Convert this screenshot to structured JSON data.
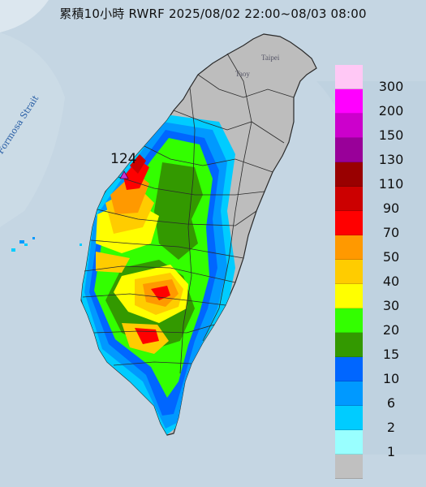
{
  "title": "累積10小時 RWRF 2025/08/02 22:00~08/03 08:00",
  "map_labels": {
    "strait": "Formosa Strait",
    "taipei": "Taipei",
    "taoyuan": "Taoy",
    "peak_value": "124"
  },
  "legend": {
    "levels": [
      {
        "label": "300",
        "color": "#ffc8f5"
      },
      {
        "label": "200",
        "color": "#ff00ff"
      },
      {
        "label": "150",
        "color": "#cc00cc"
      },
      {
        "label": "130",
        "color": "#990099"
      },
      {
        "label": "110",
        "color": "#990000"
      },
      {
        "label": "90",
        "color": "#cc0000"
      },
      {
        "label": "70",
        "color": "#ff0000"
      },
      {
        "label": "50",
        "color": "#ff9900"
      },
      {
        "label": "40",
        "color": "#ffcc00"
      },
      {
        "label": "30",
        "color": "#ffff00"
      },
      {
        "label": "20",
        "color": "#33ff00"
      },
      {
        "label": "15",
        "color": "#339900"
      },
      {
        "label": "10",
        "color": "#0066ff"
      },
      {
        "label": "6",
        "color": "#0099ff"
      },
      {
        "label": "2",
        "color": "#00ccff"
      },
      {
        "label": "1",
        "color": "#99ffff"
      },
      {
        "label": "",
        "color": "#c0c0c0"
      }
    ]
  },
  "colors": {
    "sea": "#c5d6e3",
    "land": "#bdbdbd",
    "border": "#2a2a2a",
    "marker": "#cc33cc"
  }
}
